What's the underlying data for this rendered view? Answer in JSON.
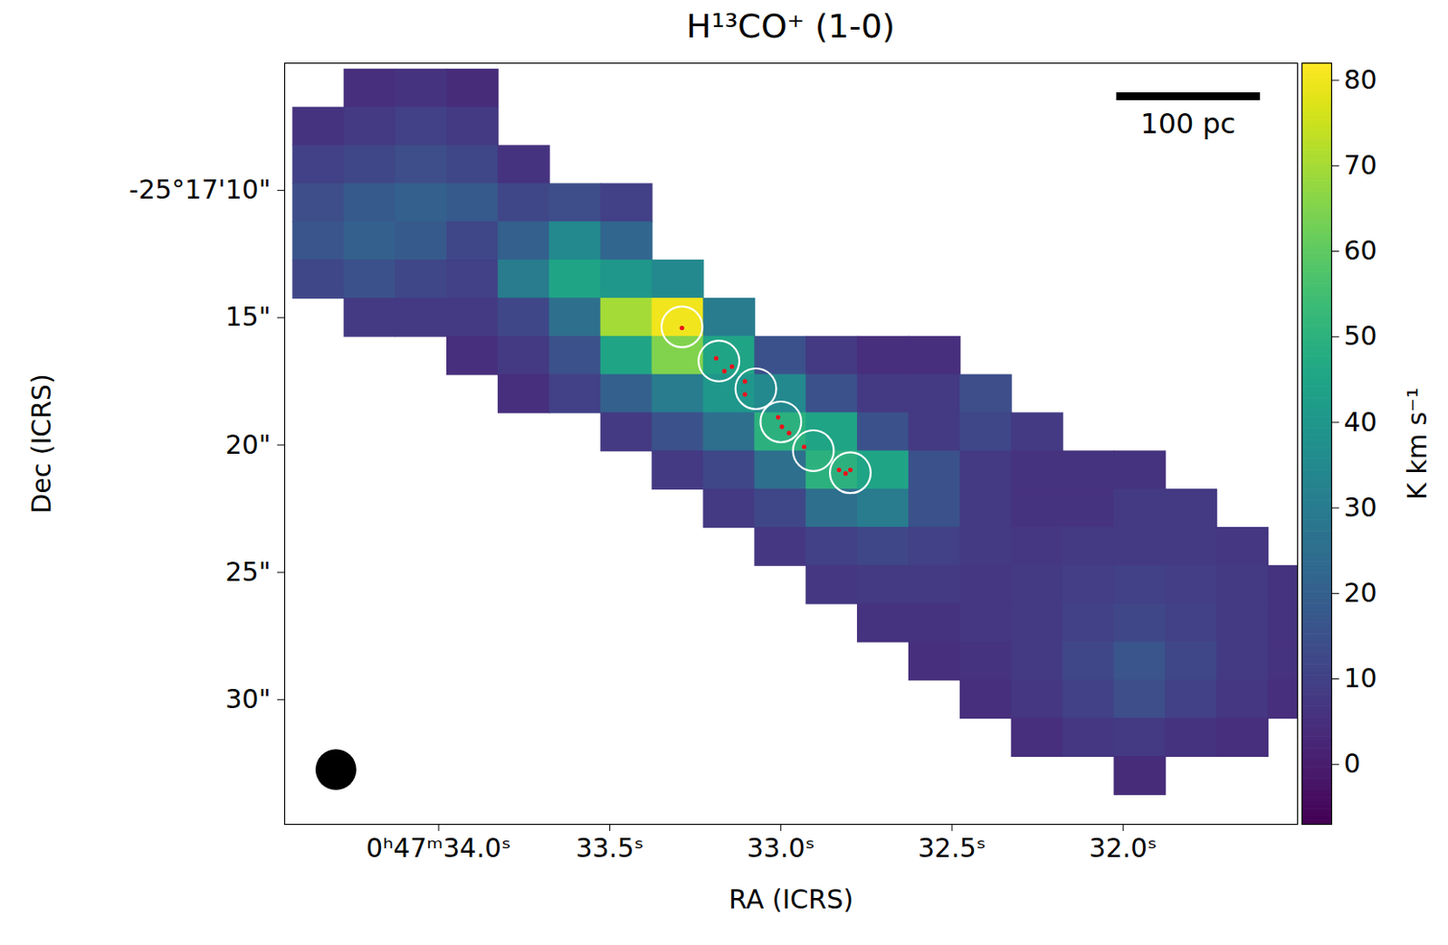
{
  "chart_data": {
    "type": "heatmap",
    "title": "H¹³CO⁺ (1-0)",
    "x_label": "RA (ICRS)",
    "y_label": "Dec (ICRS)",
    "color": "viridis",
    "xlim": [
      34.45,
      31.49
    ],
    "ylim": [
      34.9,
      5.0
    ],
    "xticks": [
      {
        "value": 34.0,
        "label": "0ʰ47ᵐ34.0ˢ"
      },
      {
        "value": 33.5,
        "label": "33.5ˢ"
      },
      {
        "value": 33.0,
        "label": "33.0ˢ"
      },
      {
        "value": 32.5,
        "label": "32.5ˢ"
      },
      {
        "value": 32.0,
        "label": "32.0ˢ"
      }
    ],
    "yticks": [
      {
        "value": 10,
        "label": "-25°17'10\""
      },
      {
        "value": 15,
        "label": "15\""
      },
      {
        "value": 20,
        "label": "20\""
      },
      {
        "value": 25,
        "label": "25\""
      },
      {
        "value": 30,
        "label": "30\""
      }
    ],
    "colorbar": {
      "label": "K km s⁻¹",
      "range": [
        -7,
        82
      ],
      "ticks": [
        0,
        10,
        20,
        30,
        40,
        50,
        60,
        70,
        80
      ]
    },
    "cells": {
      "ra": [
        34.35,
        34.2,
        34.05,
        33.9,
        33.75,
        33.6,
        33.45,
        33.3,
        33.15,
        33.0,
        32.85,
        32.7,
        32.55,
        32.4,
        32.25,
        32.1,
        31.95,
        31.8,
        31.65,
        31.5
      ],
      "dec": [
        6,
        7.5,
        9,
        10.5,
        12,
        13.5,
        15,
        16.5,
        18,
        19.5,
        21,
        22.5,
        24,
        25.5,
        27,
        28.5,
        30,
        31.5,
        33
      ],
      "values": [
        [
          null,
          5,
          6,
          4,
          null,
          null,
          null,
          null,
          null,
          null,
          null,
          null,
          null,
          null,
          null,
          null,
          null,
          null,
          null,
          null
        ],
        [
          6,
          8,
          10,
          8,
          null,
          null,
          null,
          null,
          null,
          null,
          null,
          null,
          null,
          null,
          null,
          null,
          null,
          null,
          null,
          null
        ],
        [
          10,
          12,
          14,
          12,
          6,
          null,
          null,
          null,
          null,
          null,
          null,
          null,
          null,
          null,
          null,
          null,
          null,
          null,
          null,
          null
        ],
        [
          14,
          18,
          20,
          18,
          12,
          14,
          10,
          null,
          null,
          null,
          null,
          null,
          null,
          null,
          null,
          null,
          null,
          null,
          null,
          null
        ],
        [
          16,
          20,
          18,
          12,
          20,
          35,
          22,
          null,
          null,
          null,
          null,
          null,
          null,
          null,
          null,
          null,
          null,
          null,
          null,
          null
        ],
        [
          12,
          15,
          12,
          10,
          30,
          45,
          40,
          35,
          null,
          null,
          null,
          null,
          null,
          null,
          null,
          null,
          null,
          null,
          null,
          null
        ],
        [
          null,
          8,
          8,
          8,
          12,
          25,
          70,
          80,
          30,
          null,
          null,
          null,
          null,
          null,
          null,
          null,
          null,
          null,
          null,
          null
        ],
        [
          null,
          null,
          null,
          5,
          8,
          15,
          45,
          65,
          45,
          15,
          8,
          5,
          5,
          null,
          null,
          null,
          null,
          null,
          null,
          null
        ],
        [
          null,
          null,
          null,
          null,
          5,
          10,
          20,
          30,
          40,
          35,
          15,
          8,
          8,
          14,
          null,
          null,
          null,
          null,
          null,
          null
        ],
        [
          null,
          null,
          null,
          null,
          null,
          null,
          8,
          15,
          25,
          50,
          45,
          15,
          8,
          12,
          8,
          null,
          null,
          null,
          null,
          null
        ],
        [
          null,
          null,
          null,
          null,
          null,
          null,
          null,
          8,
          12,
          25,
          50,
          45,
          15,
          8,
          6,
          6,
          6,
          null,
          null,
          null
        ],
        [
          null,
          null,
          null,
          null,
          null,
          null,
          null,
          null,
          8,
          12,
          25,
          30,
          15,
          8,
          6,
          6,
          8,
          8,
          null,
          null
        ],
        [
          null,
          null,
          null,
          null,
          null,
          null,
          null,
          null,
          null,
          7,
          10,
          12,
          10,
          8,
          7,
          8,
          8,
          8,
          7,
          null
        ],
        [
          null,
          null,
          null,
          null,
          null,
          null,
          null,
          null,
          null,
          null,
          7,
          8,
          8,
          7,
          8,
          9,
          10,
          9,
          8,
          6
        ],
        [
          null,
          null,
          null,
          null,
          null,
          null,
          null,
          null,
          null,
          null,
          null,
          6,
          6,
          7,
          8,
          10,
          12,
          10,
          8,
          6
        ],
        [
          null,
          null,
          null,
          null,
          null,
          null,
          null,
          null,
          null,
          null,
          null,
          null,
          5,
          6,
          8,
          12,
          16,
          12,
          8,
          6
        ],
        [
          null,
          null,
          null,
          null,
          null,
          null,
          null,
          null,
          null,
          null,
          null,
          null,
          null,
          5,
          7,
          10,
          14,
          10,
          7,
          5
        ],
        [
          null,
          null,
          null,
          null,
          null,
          null,
          null,
          null,
          null,
          null,
          null,
          null,
          null,
          null,
          5,
          7,
          8,
          6,
          5,
          null
        ],
        [
          null,
          null,
          null,
          null,
          null,
          null,
          null,
          null,
          null,
          null,
          null,
          null,
          null,
          null,
          null,
          null,
          4,
          null,
          null,
          null
        ]
      ]
    },
    "apertures": {
      "ra": [
        33.289,
        33.181,
        33.073,
        33.0,
        32.905,
        32.797
      ],
      "dec": [
        15.36,
        16.7,
        17.79,
        19.09,
        20.22,
        21.09
      ],
      "radius": 0.8,
      "color": "#ffffff"
    },
    "sources": {
      "ra": [
        33.289,
        33.189,
        33.165,
        33.143,
        33.105,
        33.105,
        33.008,
        32.997,
        32.976,
        32.932,
        32.83,
        32.811,
        32.797
      ],
      "dec": [
        15.4,
        16.59,
        17.1,
        16.92,
        17.5,
        18.01,
        18.91,
        19.28,
        19.53,
        20.07,
        20.98,
        21.12,
        20.98
      ],
      "color": "#e8141c"
    },
    "beam": {
      "ra": 34.3,
      "dec": 32.75,
      "radius": 0.8,
      "color": "#000000"
    },
    "scale_bar": {
      "label": "100 pc",
      "ra": [
        32.02,
        31.6
      ],
      "dec": 6.3,
      "color": "#000000"
    }
  }
}
